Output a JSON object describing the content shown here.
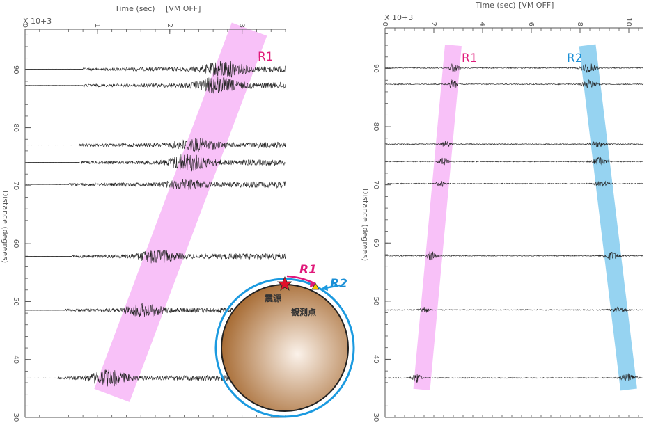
{
  "colors": {
    "r1_band": "#f7b6f7",
    "r2_band": "#7cc8ee",
    "r1_text": "#e0197a",
    "r2_text": "#1b8fd6",
    "earth_outer": "#a86d36",
    "earth_inner": "#fbf2ea",
    "orbit": "#1b9ae0",
    "axis": "#555555",
    "trace": "#222222"
  },
  "chart_data": [
    {
      "type": "line",
      "title": "Time (sec)",
      "subtitle": "[VM OFF]",
      "time_multiplier": "X 10+3",
      "xlabel": "Time (sec)",
      "ylabel": "Distance (degrees)",
      "xlim": [
        0,
        3.6
      ],
      "ylim": [
        30,
        97
      ],
      "x_ticks": [
        {
          "value": 0,
          "label": "0"
        },
        {
          "value": 1,
          "label": "1"
        },
        {
          "value": 2,
          "label": "2"
        },
        {
          "value": 3,
          "label": "3"
        }
      ],
      "y_ticks": [
        {
          "value": 90,
          "label": "90"
        },
        {
          "value": 80,
          "label": "80"
        },
        {
          "value": 70,
          "label": "70"
        },
        {
          "value": 60,
          "label": "60"
        },
        {
          "value": 50,
          "label": "50"
        },
        {
          "value": 40,
          "label": "40"
        },
        {
          "value": 30,
          "label": "30"
        }
      ],
      "traces": [
        {
          "distance": 90.1,
          "onset": 0.8,
          "peak": 2.75,
          "amp": 12
        },
        {
          "distance": 87.3,
          "onset": 0.8,
          "peak": 2.65,
          "amp": 12
        },
        {
          "distance": 77.0,
          "onset": 0.75,
          "peak": 2.35,
          "amp": 9
        },
        {
          "distance": 74.0,
          "onset": 0.75,
          "peak": 2.25,
          "amp": 13
        },
        {
          "distance": 70.2,
          "onset": 0.6,
          "peak": 2.2,
          "amp": 6
        },
        {
          "distance": 57.8,
          "onset": 0.65,
          "peak": 1.8,
          "amp": 10
        },
        {
          "distance": 48.5,
          "onset": 0.55,
          "peak": 1.65,
          "amp": 10
        },
        {
          "distance": 36.8,
          "onset": 0.45,
          "peak": 1.15,
          "amp": 13
        }
      ],
      "bands": [
        {
          "label": "R1",
          "top": {
            "distance": 97,
            "time": 3.1
          },
          "bottom": {
            "distance": 33.8,
            "time": 1.2
          }
        }
      ]
    },
    {
      "type": "line",
      "title": "Time (sec)",
      "subtitle": "[VM OFF]",
      "time_multiplier": "X 10+3",
      "xlabel": "Time (sec)",
      "ylabel": "Distance (degrees)",
      "xlim": [
        0,
        10.6
      ],
      "ylim": [
        30,
        97
      ],
      "x_ticks": [
        {
          "value": 0,
          "label": "0"
        },
        {
          "value": 2,
          "label": "2"
        },
        {
          "value": 4,
          "label": "4"
        },
        {
          "value": 6,
          "label": "6"
        },
        {
          "value": 8,
          "label": "8"
        },
        {
          "value": 10,
          "label": "10"
        }
      ],
      "y_ticks": [
        {
          "value": 90,
          "label": "90"
        },
        {
          "value": 80,
          "label": "80"
        },
        {
          "value": 70,
          "label": "70"
        },
        {
          "value": 60,
          "label": "60"
        },
        {
          "value": 50,
          "label": "50"
        },
        {
          "value": 40,
          "label": "40"
        },
        {
          "value": 30,
          "label": "30"
        }
      ],
      "traces": [
        {
          "distance": 90.1,
          "r1": 2.85,
          "r2": 8.35,
          "amp": 9
        },
        {
          "distance": 87.3,
          "r1": 2.8,
          "r2": 8.4,
          "amp": 8
        },
        {
          "distance": 77.0,
          "r1": 2.5,
          "r2": 8.7,
          "amp": 6
        },
        {
          "distance": 74.0,
          "r1": 2.4,
          "r2": 8.8,
          "amp": 7
        },
        {
          "distance": 70.2,
          "r1": 2.3,
          "r2": 8.9,
          "amp": 5
        },
        {
          "distance": 57.8,
          "r1": 1.9,
          "r2": 9.3,
          "amp": 8
        },
        {
          "distance": 48.5,
          "r1": 1.6,
          "r2": 9.6,
          "amp": 6
        },
        {
          "distance": 36.8,
          "r1": 1.3,
          "r2": 10.0,
          "amp": 9
        }
      ],
      "bands": [
        {
          "label": "R1",
          "top": {
            "distance": 94,
            "time": 2.8
          },
          "bottom": {
            "distance": 34.8,
            "time": 1.5
          }
        },
        {
          "label": "R2",
          "top": {
            "distance": 94,
            "time": 8.3
          },
          "bottom": {
            "distance": 34.8,
            "time": 10.0
          }
        }
      ]
    }
  ],
  "inset": {
    "r1_label": "R1",
    "r2_label": "R2",
    "source_label": "震源",
    "station_label": "観測点",
    "source_icon": "star-icon",
    "station_icon": "triangle-icon"
  }
}
